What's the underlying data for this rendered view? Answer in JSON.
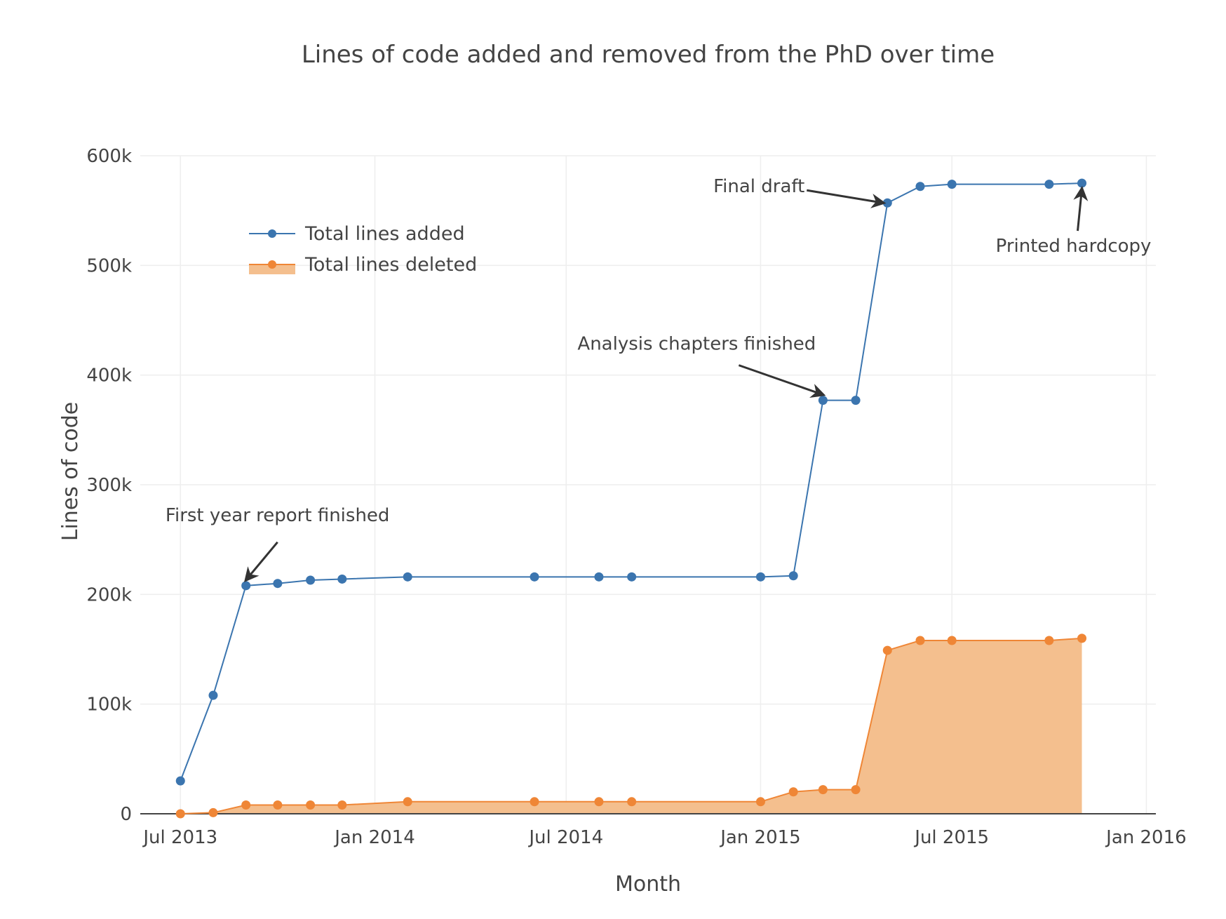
{
  "chart_data": {
    "type": "line",
    "title": "Lines of code added and removed from the PhD over time",
    "xlabel": "Month",
    "ylabel": "Lines of code",
    "x_axis": {
      "type": "date",
      "range": [
        "2013-05-24",
        "2016-01-10"
      ],
      "ticks": [
        {
          "date": "2013-07-01",
          "label": "Jul 2013"
        },
        {
          "date": "2014-01-01",
          "label": "Jan 2014"
        },
        {
          "date": "2014-07-01",
          "label": "Jul 2014"
        },
        {
          "date": "2015-01-01",
          "label": "Jan 2015"
        },
        {
          "date": "2015-07-01",
          "label": "Jul 2015"
        },
        {
          "date": "2016-01-01",
          "label": "Jan 2016"
        }
      ]
    },
    "y_axis": {
      "range": [
        0,
        600000
      ],
      "ticks": [
        {
          "value": 0,
          "label": "0"
        },
        {
          "value": 100000,
          "label": "100k"
        },
        {
          "value": 200000,
          "label": "200k"
        },
        {
          "value": 300000,
          "label": "300k"
        },
        {
          "value": 400000,
          "label": "400k"
        },
        {
          "value": 500000,
          "label": "500k"
        },
        {
          "value": 600000,
          "label": "600k"
        }
      ]
    },
    "grid": true,
    "legend_position": "top-left",
    "x": [
      "2013-07-01",
      "2013-08-01",
      "2013-09-01",
      "2013-10-01",
      "2013-11-01",
      "2013-12-01",
      "2014-02-01",
      "2014-06-01",
      "2014-08-01",
      "2014-09-01",
      "2015-01-01",
      "2015-02-01",
      "2015-03-01",
      "2015-04-01",
      "2015-05-01",
      "2015-06-01",
      "2015-07-01",
      "2015-10-01",
      "2015-11-01"
    ],
    "series": [
      {
        "name": "Total lines added",
        "color": "#3b75af",
        "mode": "lines+markers",
        "values": [
          30000,
          108000,
          208000,
          210000,
          213000,
          214000,
          216000,
          216000,
          216000,
          216000,
          216000,
          217000,
          377000,
          377000,
          557000,
          572000,
          574000,
          574000,
          575000
        ]
      },
      {
        "name": "Total lines deleted",
        "color": "#ef8636",
        "fill_color": "#f4bf8e",
        "mode": "lines+markers+fill",
        "values": [
          0,
          1000,
          8000,
          8000,
          8000,
          8000,
          11000,
          11000,
          11000,
          11000,
          11000,
          20000,
          22000,
          22000,
          149000,
          158000,
          158000,
          158000,
          160000
        ]
      }
    ],
    "annotations": [
      {
        "text": "First year report finished",
        "x": "2013-09-01",
        "y": 208000
      },
      {
        "text": "Analysis chapters finished",
        "x": "2015-03-01",
        "y": 377000
      },
      {
        "text": "Final draft",
        "x": "2015-05-01",
        "y": 557000
      },
      {
        "text": "Printed hardcopy",
        "x": "2015-11-01",
        "y": 575000
      }
    ]
  }
}
